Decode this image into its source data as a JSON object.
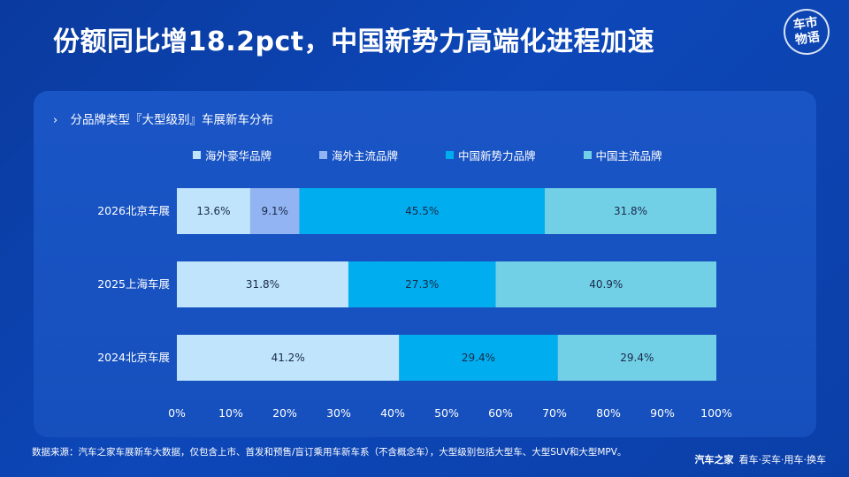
{
  "page": {
    "title": "份额同比增18.2pct，中国新势力高端化进程加速",
    "logo_text": [
      "车",
      "市",
      "物",
      "语"
    ],
    "subtitle_marker": "›",
    "subtitle": "分品牌类型『大型级别』车展新车分布"
  },
  "colors": {
    "海外豪华品牌": "#bfe4fb",
    "海外主流品牌": "#93b4f2",
    "中国新势力品牌": "#00aeef",
    "中国主流品牌": "#72d0e6"
  },
  "chart_data": {
    "type": "bar",
    "orientation": "horizontal",
    "stacked": true,
    "categories": [
      "2026北京车展",
      "2025上海车展",
      "2024北京车展"
    ],
    "series": [
      {
        "name": "海外豪华品牌",
        "values": [
          13.6,
          31.8,
          41.2
        ],
        "labels": [
          "13.6%",
          "31.8%",
          "41.2%"
        ]
      },
      {
        "name": "海外主流品牌",
        "values": [
          9.1,
          0,
          0
        ],
        "labels": [
          "9.1%",
          "",
          ""
        ]
      },
      {
        "name": "中国新势力品牌",
        "values": [
          45.5,
          27.3,
          29.4
        ],
        "labels": [
          "45.5%",
          "27.3%",
          "29.4%"
        ]
      },
      {
        "name": "中国主流品牌",
        "values": [
          31.8,
          40.9,
          29.4
        ],
        "labels": [
          "31.8%",
          "40.9%",
          "29.4%"
        ]
      }
    ],
    "xlim": [
      0,
      100
    ],
    "xticks": [
      "0%",
      "10%",
      "20%",
      "30%",
      "40%",
      "50%",
      "60%",
      "70%",
      "80%",
      "90%",
      "100%"
    ],
    "grid": false,
    "legend_position": "top"
  },
  "footer": {
    "source": "数据来源：汽车之家车展新车大数据，仅包含上市、首发和预售/盲订乘用车新车系（不含概念车），大型级别包括大型车、大型SUV和大型MPV。",
    "brand_name": "汽车之家",
    "brand_slogan": "看车·买车·用车·换车"
  }
}
